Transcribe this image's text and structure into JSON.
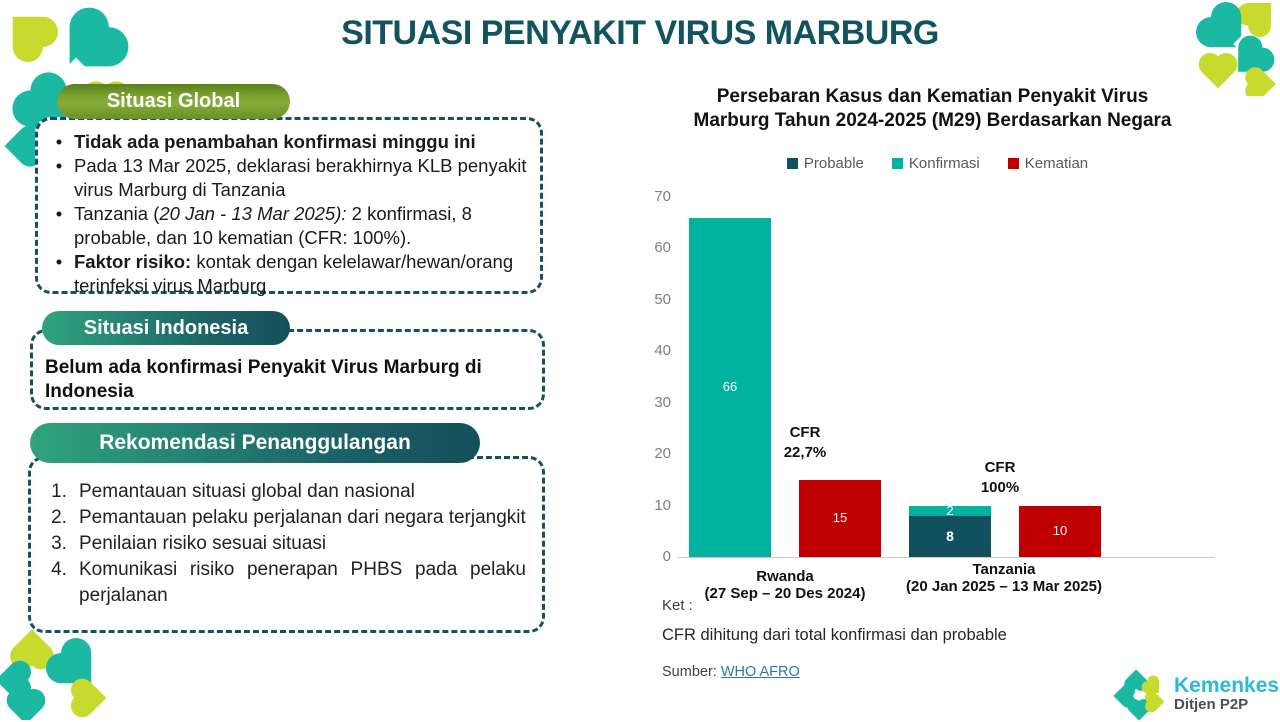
{
  "page": {
    "title": "SITUASI PENYAKIT VIRUS MARBURG"
  },
  "global_section": {
    "header": "Situasi Global",
    "bullet_glyph": "•",
    "bullet1": "Tidak ada penambahan konfirmasi minggu ini",
    "bullet2": "Pada 13 Mar 2025, deklarasi berakhirnya KLB penyakit virus Marburg di Tanzania",
    "bullet3_pre": "Tanzania (",
    "bullet3_italic": "20 Jan - 13 Mar 2025):",
    "bullet3_post": " 2 konfirmasi, 8 probable, dan 10 kematian (CFR: 100%).",
    "bullet4_bold": "Faktor risiko:",
    "bullet4_post": " kontak dengan kelelawar/hewan/orang terinfeksi virus Marburg"
  },
  "indonesia_section": {
    "header": "Situasi Indonesia",
    "body": "Belum ada konfirmasi Penyakit Virus Marburg di Indonesia"
  },
  "recommendations_section": {
    "header": "Rekomendasi Penanggulangan",
    "items": [
      {
        "num": "1.",
        "text": "Pemantauan situasi global dan nasional"
      },
      {
        "num": "2.",
        "text": "Pemantauan pelaku perjalanan dari negara terjangkit"
      },
      {
        "num": "3.",
        "text": "Penilaian risiko sesuai situasi"
      },
      {
        "num": "4.",
        "text": "Komunikasi risiko penerapan PHBS pada pelaku perjalanan"
      }
    ]
  },
  "chart_data": {
    "type": "bar",
    "title": "Persebaran Kasus dan Kematian Penyakit Virus Marburg Tahun 2024-2025 (M29) Berdasarkan Negara",
    "title_lines": [
      "Persebaran Kasus dan Kematian Penyakit Virus",
      "Marburg Tahun 2024-2025 (M29) Berdasarkan Negara"
    ],
    "legend": [
      "Probable",
      "Konfirmasi",
      "Kematian"
    ],
    "legend_position": "top",
    "series_colors": {
      "Probable": "#11505E",
      "Konfirmasi": "#00B2A0",
      "Kematian": "#C00000"
    },
    "ylim": [
      0,
      70
    ],
    "ytick_step": 10,
    "grid": false,
    "xlabel": "",
    "ylabel": "",
    "groups": [
      {
        "label_line1": "Rwanda",
        "label_line2": "(27 Sep – 20 Des 2024)",
        "bars": [
          {
            "segments": [
              {
                "series": "Konfirmasi",
                "value": 66
              }
            ]
          },
          {
            "segments": [
              {
                "series": "Kematian",
                "value": 15
              }
            ]
          }
        ],
        "annotation": {
          "line1": "CFR",
          "line2": "22,7%"
        }
      },
      {
        "label_line1": "Tanzania",
        "label_line2": "(20 Jan 2025  – 13 Mar 2025)",
        "bars": [
          {
            "segments": [
              {
                "series": "Probable",
                "value": 8,
                "bold": true
              },
              {
                "series": "Konfirmasi",
                "value": 2
              }
            ]
          },
          {
            "segments": [
              {
                "series": "Kematian",
                "value": 10
              }
            ]
          }
        ],
        "annotation": {
          "line1": "CFR",
          "line2": "100%"
        }
      }
    ]
  },
  "footer": {
    "ket_label": "Ket :",
    "ket_text": "CFR dihitung dari total konfirmasi dan probable",
    "source_label": "Sumber:",
    "source_link": "WHO AFRO"
  },
  "logo": {
    "brand": "Kemenkes",
    "unit": "Ditjen P2P"
  },
  "colors": {
    "title": "#11535F",
    "header_pill_green": "#7CA32F",
    "header_pill_teal_start": "#2FA47D",
    "header_pill_teal_end": "#14505A",
    "dashed_border": "#14525E",
    "decor_teal": "#1CB9A2",
    "decor_lime": "#C6DB2D",
    "link": "#2E75B6",
    "brand_text": "#2BB9D9"
  }
}
